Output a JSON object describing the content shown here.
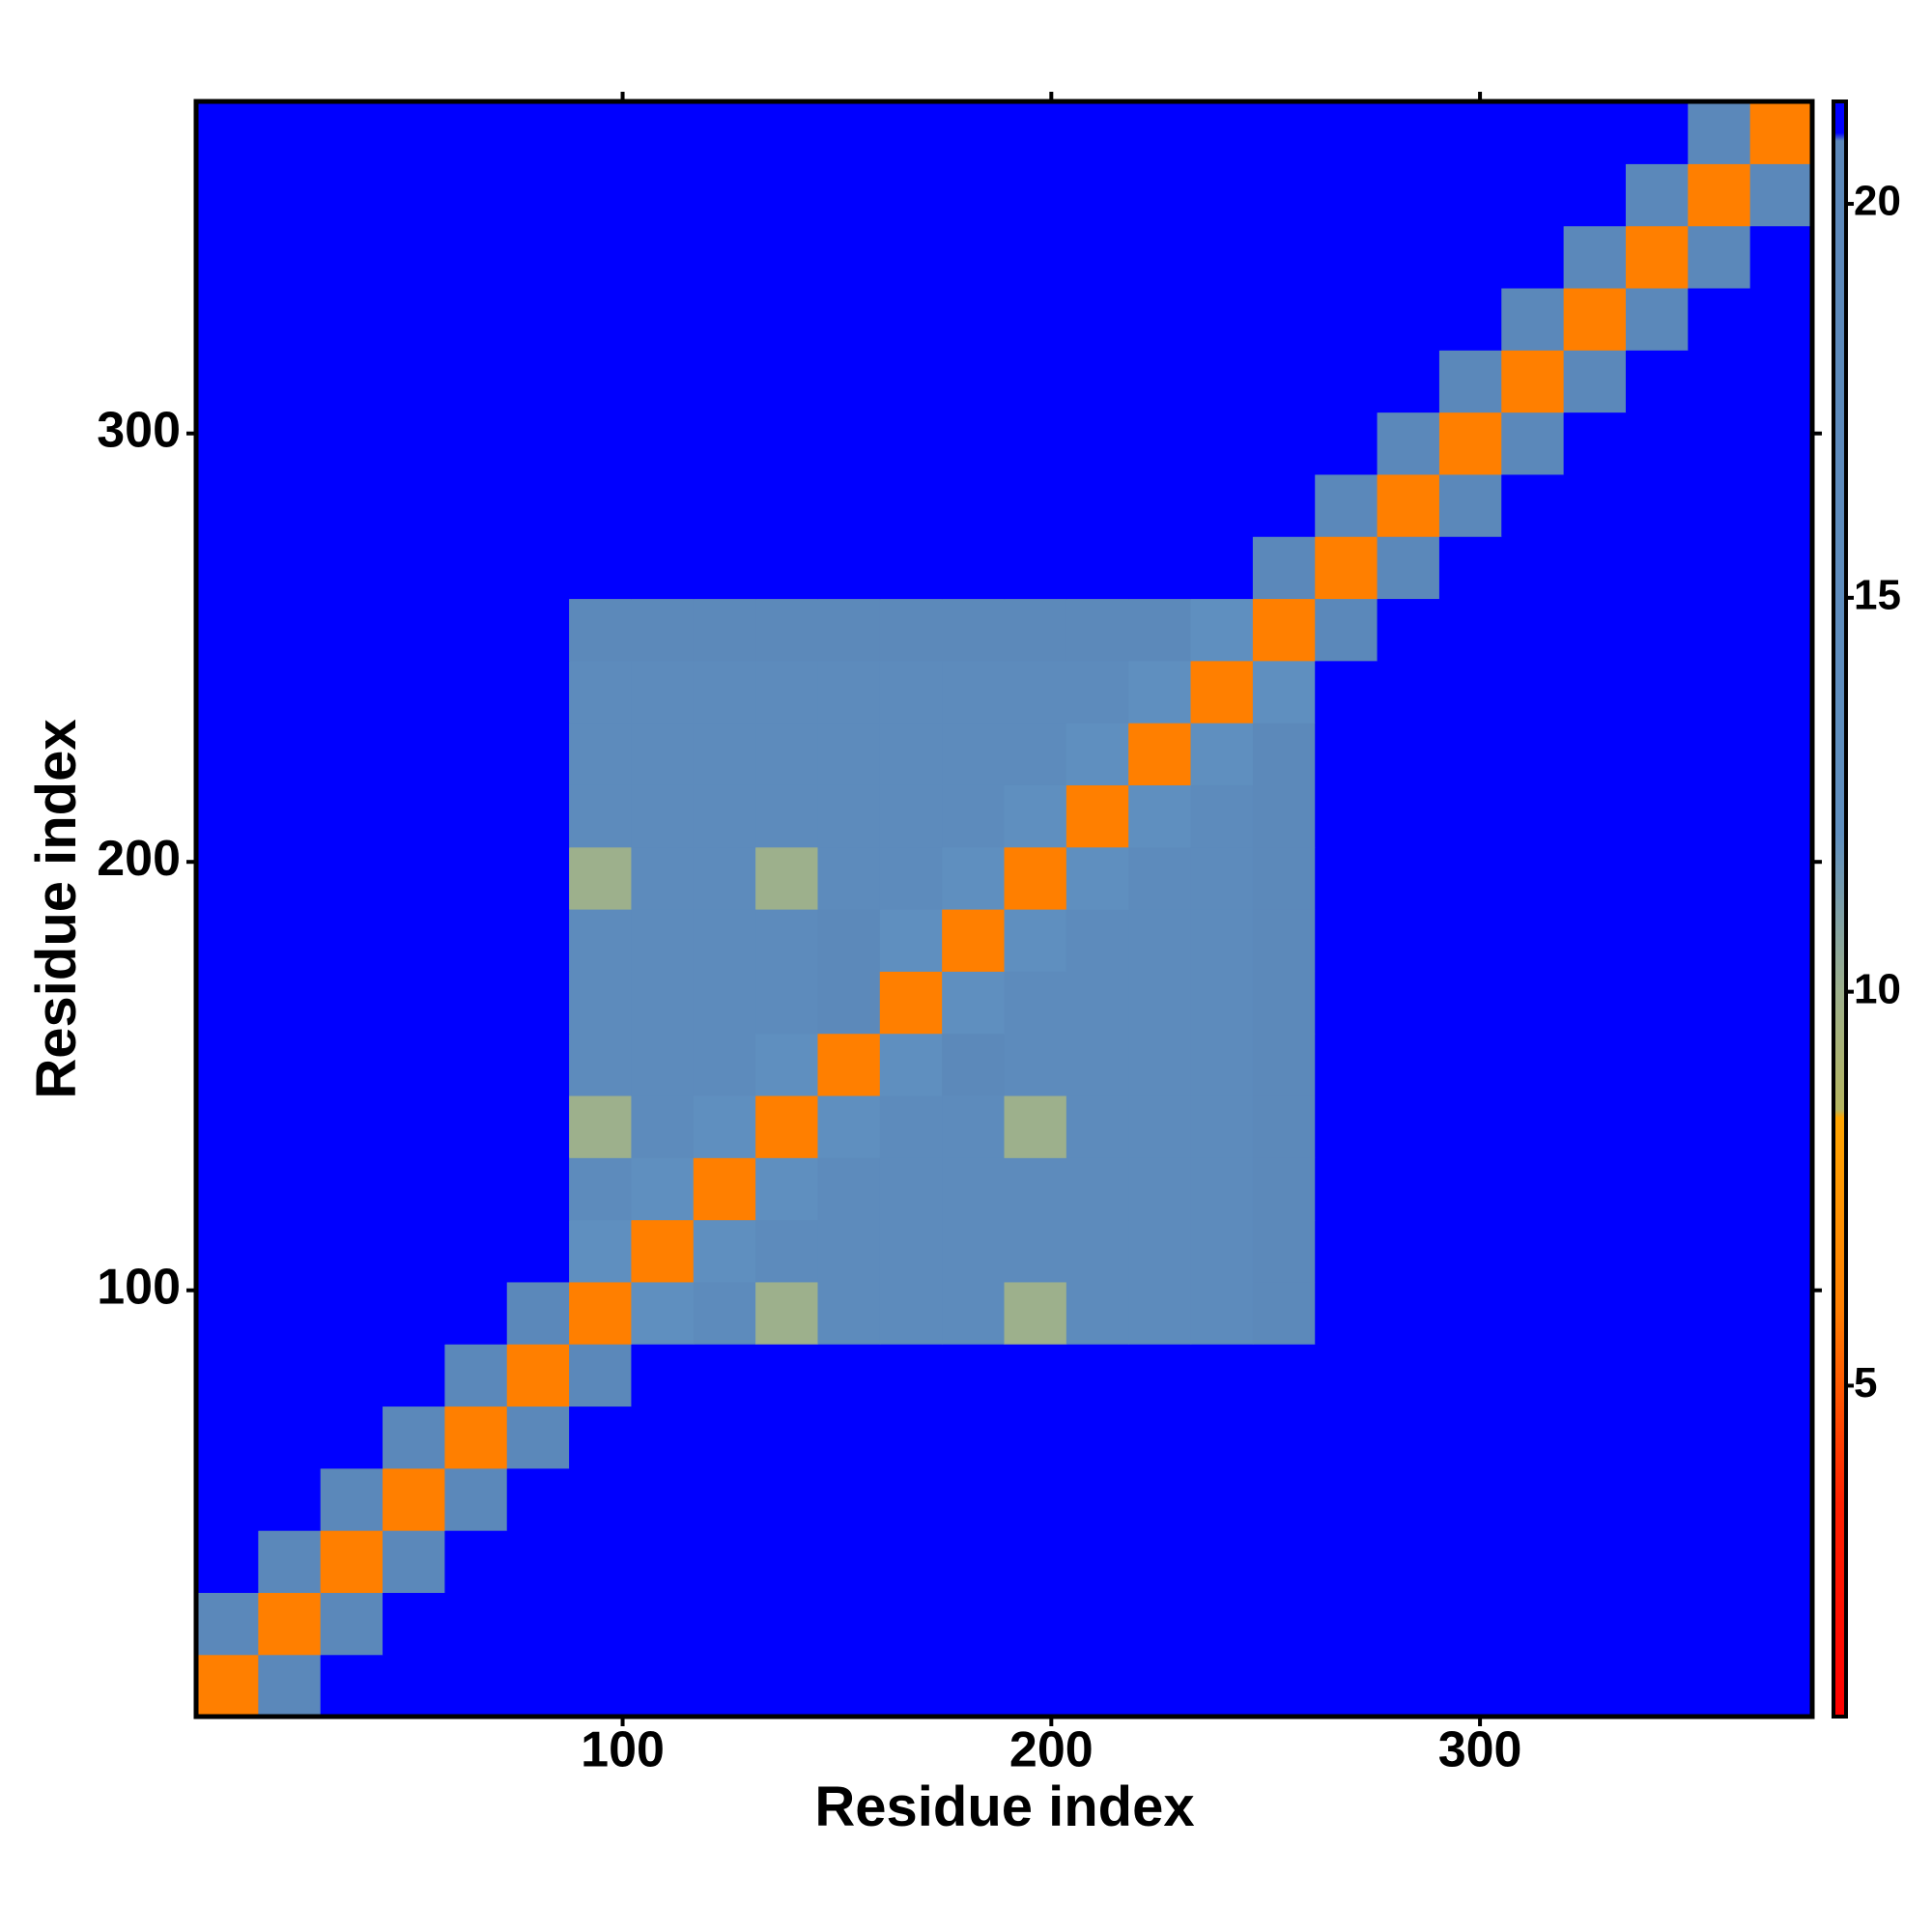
{
  "chart_data": {
    "type": "heatmap",
    "x_label": "Residue index",
    "y_label": "Residue index",
    "bins": [
      0.5,
      15,
      29.5,
      44,
      58.5,
      73,
      87.5,
      102,
      116.5,
      131,
      145.5,
      160,
      174.5,
      189,
      203.5,
      218,
      232.5,
      247,
      261.5,
      276,
      290.5,
      305,
      319.5,
      334,
      348.5,
      363,
      377.5
    ],
    "xlim": [
      0.5,
      377.5
    ],
    "ylim": [
      0.5,
      377.5
    ],
    "xticks": [
      100,
      200,
      300
    ],
    "yticks": [
      100,
      200,
      300
    ],
    "clim": [
      0.8,
      21.3
    ],
    "cticks": [
      5,
      10,
      15,
      20
    ],
    "colorscale": [
      [
        0.8,
        "#ff0000"
      ],
      [
        3.5,
        "#ff2000"
      ],
      [
        6,
        "#ff7f00"
      ],
      [
        8.4,
        "#ffa500"
      ],
      [
        8.5,
        "#b5b55f"
      ],
      [
        10,
        "#9db08c"
      ],
      [
        12,
        "#5f8fbf"
      ],
      [
        20.8,
        "#5b87b9"
      ],
      [
        20.9,
        "#0000ff"
      ],
      [
        21.3,
        "#0000ff"
      ]
    ],
    "z": [
      [
        6,
        20,
        21,
        21,
        21,
        21,
        21,
        21,
        21,
        21,
        21,
        21,
        21,
        21,
        21,
        21,
        21,
        21,
        21,
        21,
        21,
        21,
        21,
        21,
        21,
        21
      ],
      [
        20,
        6,
        20,
        21,
        21,
        21,
        21,
        21,
        21,
        21,
        21,
        21,
        21,
        21,
        21,
        21,
        21,
        21,
        21,
        21,
        21,
        21,
        21,
        21,
        21,
        21
      ],
      [
        21,
        20,
        6,
        20,
        21,
        21,
        21,
        21,
        21,
        21,
        21,
        21,
        21,
        21,
        21,
        21,
        21,
        21,
        21,
        21,
        21,
        21,
        21,
        21,
        21,
        21
      ],
      [
        21,
        21,
        20,
        6,
        20,
        21,
        21,
        21,
        21,
        21,
        21,
        21,
        21,
        21,
        21,
        21,
        21,
        21,
        21,
        21,
        21,
        21,
        21,
        21,
        21,
        21
      ],
      [
        21,
        21,
        21,
        20,
        6,
        20,
        21,
        21,
        21,
        21,
        21,
        21,
        21,
        21,
        21,
        21,
        21,
        21,
        21,
        21,
        21,
        21,
        21,
        21,
        21,
        21
      ],
      [
        21,
        21,
        21,
        21,
        20,
        6,
        20,
        21,
        21,
        21,
        21,
        21,
        21,
        21,
        21,
        21,
        21,
        21,
        21,
        21,
        21,
        21,
        21,
        21,
        21,
        21
      ],
      [
        21,
        21,
        21,
        21,
        21,
        20,
        6,
        12,
        16,
        10,
        16,
        16,
        16,
        10,
        16,
        16,
        16,
        19,
        21,
        21,
        21,
        21,
        21,
        21,
        21,
        21
      ],
      [
        21,
        21,
        21,
        21,
        21,
        21,
        12,
        6,
        12,
        16,
        16,
        16,
        16,
        16,
        16,
        16,
        16,
        19,
        21,
        21,
        21,
        21,
        21,
        21,
        21,
        21
      ],
      [
        21,
        21,
        21,
        21,
        21,
        21,
        16,
        12,
        6,
        12,
        16,
        16,
        16,
        16,
        16,
        16,
        16,
        19,
        21,
        21,
        21,
        21,
        21,
        21,
        21,
        21
      ],
      [
        21,
        21,
        21,
        21,
        21,
        21,
        10,
        16,
        12,
        6,
        12,
        16,
        16,
        10,
        16,
        16,
        16,
        19,
        21,
        21,
        21,
        21,
        21,
        21,
        21,
        21
      ],
      [
        21,
        21,
        21,
        21,
        21,
        21,
        16,
        16,
        16,
        12,
        6,
        12,
        19,
        16,
        16,
        16,
        16,
        19,
        21,
        21,
        21,
        21,
        21,
        21,
        21,
        21
      ],
      [
        21,
        21,
        21,
        21,
        21,
        21,
        16,
        16,
        16,
        16,
        19,
        6,
        12,
        16,
        16,
        16,
        16,
        19,
        21,
        21,
        21,
        21,
        21,
        21,
        21,
        21
      ],
      [
        21,
        21,
        21,
        21,
        21,
        21,
        16,
        16,
        16,
        16,
        19,
        12,
        6,
        12,
        16,
        16,
        16,
        19,
        21,
        21,
        21,
        21,
        21,
        21,
        21,
        21
      ],
      [
        21,
        21,
        21,
        21,
        21,
        21,
        10,
        16,
        16,
        10,
        16,
        16,
        12,
        6,
        12,
        16,
        16,
        19,
        21,
        21,
        21,
        21,
        21,
        21,
        21,
        21
      ],
      [
        21,
        21,
        21,
        21,
        21,
        21,
        16,
        16,
        16,
        16,
        16,
        16,
        16,
        12,
        6,
        12,
        16,
        19,
        21,
        21,
        21,
        21,
        21,
        21,
        21,
        21
      ],
      [
        21,
        21,
        21,
        21,
        21,
        21,
        16,
        16,
        16,
        16,
        16,
        16,
        16,
        16,
        12,
        6,
        12,
        19,
        21,
        21,
        21,
        21,
        21,
        21,
        21,
        21
      ],
      [
        21,
        21,
        21,
        21,
        21,
        21,
        16,
        16,
        16,
        16,
        16,
        16,
        16,
        16,
        16,
        12,
        6,
        12,
        21,
        21,
        21,
        21,
        21,
        21,
        21,
        21
      ],
      [
        21,
        21,
        21,
        21,
        21,
        21,
        19,
        19,
        19,
        19,
        19,
        19,
        19,
        19,
        19,
        19,
        12,
        6,
        20,
        21,
        21,
        21,
        21,
        21,
        21,
        21
      ],
      [
        21,
        21,
        21,
        21,
        21,
        21,
        21,
        21,
        21,
        21,
        21,
        21,
        21,
        21,
        21,
        21,
        21,
        20,
        6,
        20,
        21,
        21,
        21,
        21,
        21,
        21
      ],
      [
        21,
        21,
        21,
        21,
        21,
        21,
        21,
        21,
        21,
        21,
        21,
        21,
        21,
        21,
        21,
        21,
        21,
        21,
        20,
        6,
        20,
        21,
        21,
        21,
        21,
        21
      ],
      [
        21,
        21,
        21,
        21,
        21,
        21,
        21,
        21,
        21,
        21,
        21,
        21,
        21,
        21,
        21,
        21,
        21,
        21,
        21,
        20,
        6,
        20,
        21,
        21,
        21,
        21
      ],
      [
        21,
        21,
        21,
        21,
        21,
        21,
        21,
        21,
        21,
        21,
        21,
        21,
        21,
        21,
        21,
        21,
        21,
        21,
        21,
        21,
        20,
        6,
        20,
        21,
        21,
        21
      ],
      [
        21,
        21,
        21,
        21,
        21,
        21,
        21,
        21,
        21,
        21,
        21,
        21,
        21,
        21,
        21,
        21,
        21,
        21,
        21,
        21,
        21,
        20,
        6,
        20,
        21,
        21
      ],
      [
        21,
        21,
        21,
        21,
        21,
        21,
        21,
        21,
        21,
        21,
        21,
        21,
        21,
        21,
        21,
        21,
        21,
        21,
        21,
        21,
        21,
        21,
        20,
        6,
        20,
        21
      ],
      [
        21,
        21,
        21,
        21,
        21,
        21,
        21,
        21,
        21,
        21,
        21,
        21,
        21,
        21,
        21,
        21,
        21,
        21,
        21,
        21,
        21,
        21,
        21,
        20,
        6,
        20
      ],
      [
        21,
        21,
        21,
        21,
        21,
        21,
        21,
        21,
        21,
        21,
        21,
        21,
        21,
        21,
        21,
        21,
        21,
        21,
        21,
        21,
        21,
        21,
        21,
        21,
        20,
        6
      ]
    ]
  }
}
